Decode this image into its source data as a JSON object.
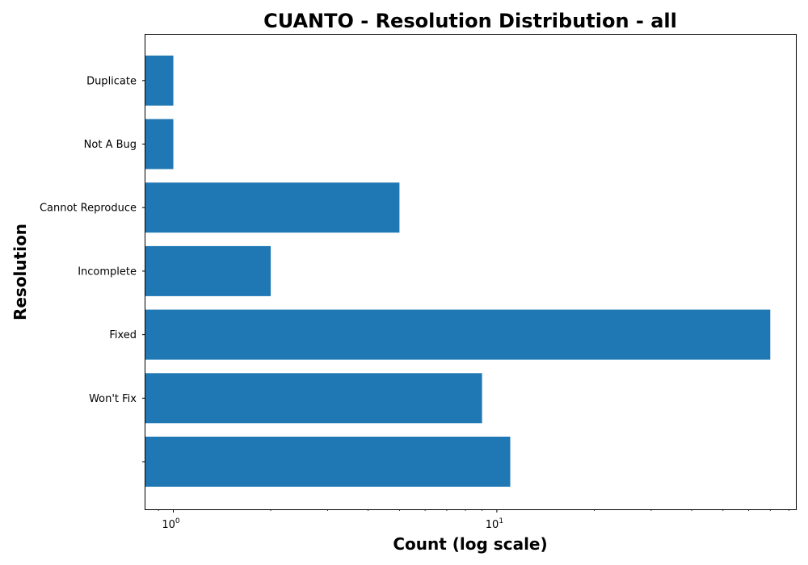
{
  "chart_data": {
    "type": "bar",
    "orientation": "horizontal",
    "title": "CUANTO - Resolution Distribution - all",
    "xlabel": "Count (log scale)",
    "ylabel": "Resolution",
    "xscale": "log",
    "xlim": [
      0.82,
      84
    ],
    "grid": false,
    "legend": false,
    "categories": [
      "",
      "Won't Fix",
      "Fixed",
      "Incomplete",
      "Cannot Reproduce",
      "Not A Bug",
      "Duplicate"
    ],
    "values": [
      11,
      9,
      70,
      2,
      5,
      1,
      1
    ],
    "bar_color": "#1f77b4",
    "x_ticks": [
      {
        "base": "10",
        "exp": "0",
        "value": 1
      },
      {
        "base": "10",
        "exp": "1",
        "value": 10
      }
    ]
  }
}
